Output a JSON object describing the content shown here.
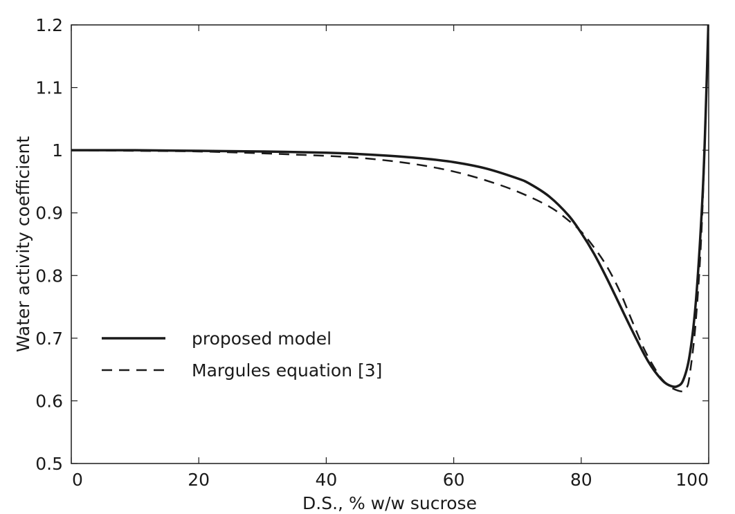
{
  "chart_data": {
    "type": "line",
    "title": "",
    "xlabel": "D.S., % w/w sucrose",
    "ylabel": "Water activity coefficient",
    "xlim": [
      0,
      100
    ],
    "ylim": [
      0.5,
      1.2
    ],
    "xticks": [
      0,
      20,
      40,
      60,
      80,
      100
    ],
    "xtick_labels": [
      "0",
      "20",
      "40",
      "60",
      "80",
      "100"
    ],
    "yticks": [
      0.5,
      0.6,
      0.7,
      0.8,
      0.9,
      1.0,
      1.1,
      1.2
    ],
    "ytick_labels": [
      "0.5",
      "0.6",
      "0.7",
      "0.8",
      "0.9",
      "1",
      "1.1",
      "1.2"
    ],
    "grid": false,
    "legend_position": "lower-left",
    "series": [
      {
        "name": "proposed model",
        "style": "solid",
        "color": "#1a1a1a",
        "x": [
          0,
          10,
          20,
          30,
          40,
          45,
          50,
          55,
          60,
          65,
          70,
          72,
          75,
          78,
          80,
          82,
          84,
          86,
          88,
          90,
          91,
          92,
          93,
          94,
          95,
          96,
          97,
          98,
          99,
          99.5,
          100
        ],
        "y": [
          1.0,
          1.0,
          0.999,
          0.998,
          0.996,
          0.994,
          0.991,
          0.987,
          0.981,
          0.971,
          0.955,
          0.946,
          0.926,
          0.896,
          0.868,
          0.835,
          0.796,
          0.754,
          0.712,
          0.672,
          0.655,
          0.641,
          0.63,
          0.624,
          0.623,
          0.633,
          0.672,
          0.76,
          0.92,
          1.05,
          1.22
        ]
      },
      {
        "name": "Margules equation [3]",
        "style": "dashed",
        "color": "#1a1a1a",
        "x": [
          0,
          10,
          20,
          30,
          35,
          40,
          45,
          50,
          55,
          60,
          65,
          70,
          75,
          78,
          80,
          82,
          84,
          86,
          88,
          90,
          92,
          93,
          94,
          95,
          96,
          96.5,
          97,
          98,
          99,
          100
        ],
        "y": [
          1.0,
          0.999,
          0.998,
          0.995,
          0.993,
          0.991,
          0.988,
          0.983,
          0.976,
          0.966,
          0.952,
          0.934,
          0.91,
          0.888,
          0.87,
          0.845,
          0.815,
          0.776,
          0.727,
          0.68,
          0.644,
          0.631,
          0.622,
          0.617,
          0.615,
          0.62,
          0.64,
          0.73,
          0.9,
          1.22
        ]
      }
    ]
  }
}
